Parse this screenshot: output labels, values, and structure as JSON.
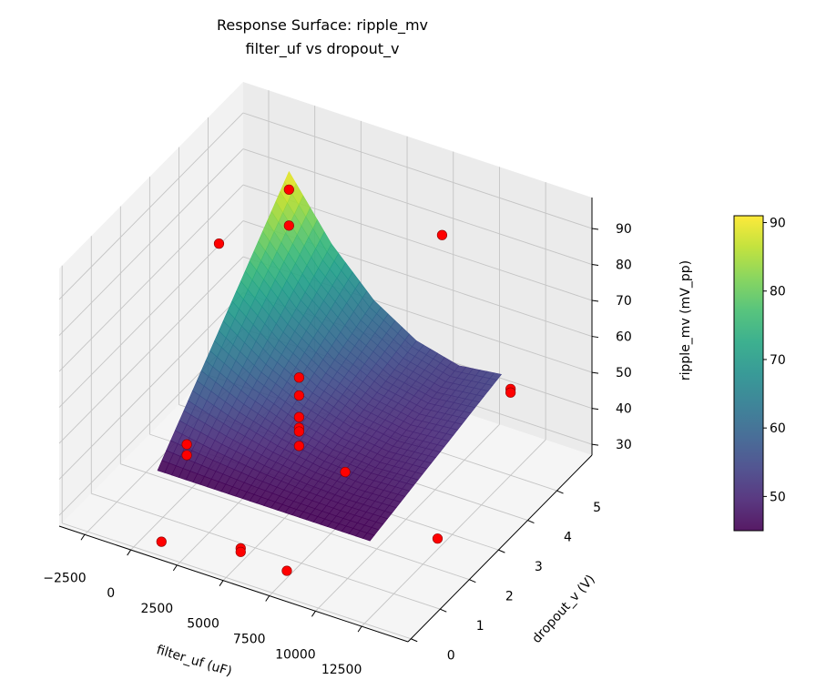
{
  "chart_data": {
    "type": "surface3d",
    "title": "Response Surface: ripple_mv",
    "subtitle": "filter_uf vs dropout_v",
    "xlabel": "filter_uf (uF)",
    "ylabel": "dropout_v (V)",
    "zlabel": "ripple_mv (mV_pp)",
    "xlim": [
      -3880,
      15010
    ],
    "ylim": [
      -0.1,
      6.2
    ],
    "zlim": [
      27,
      98.6
    ],
    "xticks": [
      -2500,
      0,
      2500,
      5000,
      7500,
      10000,
      12500
    ],
    "xtick_labels": [
      "−2500",
      "0",
      "2500",
      "5000",
      "7500",
      "10000",
      "12500"
    ],
    "yticks": [
      0,
      1,
      2,
      3,
      4,
      5
    ],
    "ytick_labels": [
      "0",
      "1",
      "2",
      "3",
      "4",
      "5"
    ],
    "zticks": [
      30,
      40,
      50,
      60,
      70,
      80,
      90
    ],
    "ztick_labels": [
      "30",
      "40",
      "50",
      "60",
      "70",
      "80",
      "90"
    ],
    "grid": true,
    "colormap": "viridis",
    "surface": {
      "x": [
        500,
        2800,
        5100,
        7400,
        9700,
        12000
      ],
      "y": [
        0.5,
        1.4,
        2.3,
        3.2,
        4.1,
        5.0
      ],
      "z": [
        [
          45.0,
          45.0,
          45.0,
          45.0,
          45.0,
          45.0
        ],
        [
          54.2,
          51.0,
          48.6,
          47.1,
          46.5,
          46.8
        ],
        [
          63.4,
          56.9,
          52.2,
          49.3,
          48.1,
          48.7
        ],
        [
          72.6,
          62.9,
          55.8,
          51.4,
          49.6,
          50.5
        ],
        [
          81.8,
          68.8,
          59.4,
          53.5,
          51.2,
          52.4
        ],
        [
          91.0,
          74.8,
          63.0,
          55.7,
          52.7,
          54.2
        ]
      ]
    },
    "scatter": {
      "color": "#ff0000",
      "points": [
        {
          "x": 500,
          "y": 5.0,
          "z": 86
        },
        {
          "x": 500,
          "y": 5.0,
          "z": 76
        },
        {
          "x": -2500,
          "y": 4.5,
          "z": 70
        },
        {
          "x": 8000,
          "y": 5.5,
          "z": 82
        },
        {
          "x": 5000,
          "y": 2.5,
          "z": 62
        },
        {
          "x": 5000,
          "y": 2.5,
          "z": 57
        },
        {
          "x": 5000,
          "y": 2.5,
          "z": 51
        },
        {
          "x": 5000,
          "y": 2.5,
          "z": 48
        },
        {
          "x": 5000,
          "y": 2.5,
          "z": 47
        },
        {
          "x": 5000,
          "y": 2.5,
          "z": 43
        },
        {
          "x": 500,
          "y": 1.5,
          "z": 44
        },
        {
          "x": 500,
          "y": 1.5,
          "z": 41
        },
        {
          "x": 7500,
          "y": 2.5,
          "z": 40
        },
        {
          "x": 12500,
          "y": 5.0,
          "z": 51
        },
        {
          "x": 12500,
          "y": 5.0,
          "z": 50
        },
        {
          "x": 5000,
          "y": 0.5,
          "z": 31
        },
        {
          "x": 5000,
          "y": 0.5,
          "z": 30
        },
        {
          "x": 1500,
          "y": 0.0,
          "z": 31
        },
        {
          "x": 7500,
          "y": 0.5,
          "z": 29
        },
        {
          "x": 12500,
          "y": 2.5,
          "z": 30
        }
      ]
    },
    "colorbar": {
      "range": [
        45,
        91
      ],
      "ticks": [
        50,
        60,
        70,
        80,
        90
      ],
      "tick_labels": [
        "50",
        "60",
        "70",
        "80",
        "90"
      ]
    }
  }
}
